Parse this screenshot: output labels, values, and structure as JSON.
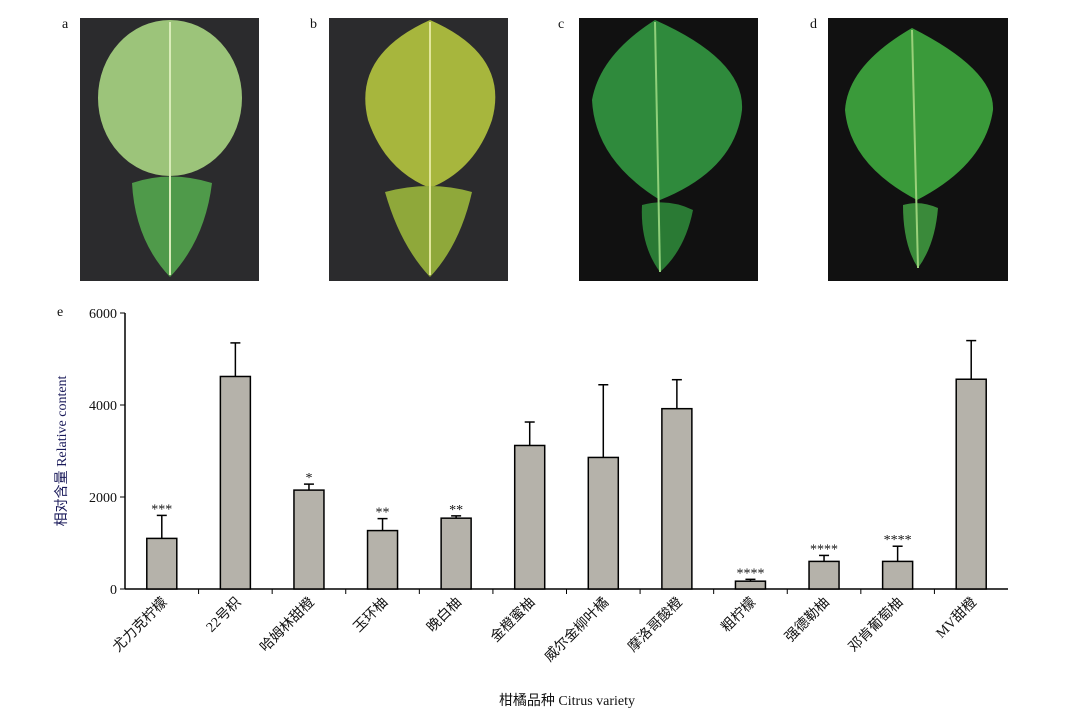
{
  "panels": {
    "labels": [
      "a",
      "b",
      "c",
      "d"
    ]
  },
  "chart_data": {
    "type": "bar",
    "panel_label": "e",
    "x_label": "柑橘品种 Citrus variety",
    "y_label": "相对含量 Relative content",
    "categories": [
      "尤力克柠檬",
      "22号枳",
      "哈姆林甜橙",
      "玉环柚",
      "晚白柚",
      "金橙蜜柚",
      "威尔金柳叶橘",
      "摩洛哥酸橙",
      "粗柠檬",
      "强德勒柚",
      "邓肯葡萄柚",
      "MV甜橙"
    ],
    "values": [
      1100,
      4620,
      2150,
      1270,
      1540,
      3120,
      2860,
      3920,
      170,
      600,
      600,
      4560
    ],
    "errors": [
      500,
      730,
      130,
      260,
      50,
      510,
      1580,
      630,
      40,
      130,
      330,
      840
    ],
    "significance": [
      "***",
      null,
      "*",
      "**",
      "**",
      null,
      null,
      null,
      "****",
      "****",
      "****",
      null
    ],
    "color": "#b5b2aa",
    "ylim": [
      0,
      6000
    ],
    "yticks": [
      0,
      2000,
      4000,
      6000
    ]
  }
}
